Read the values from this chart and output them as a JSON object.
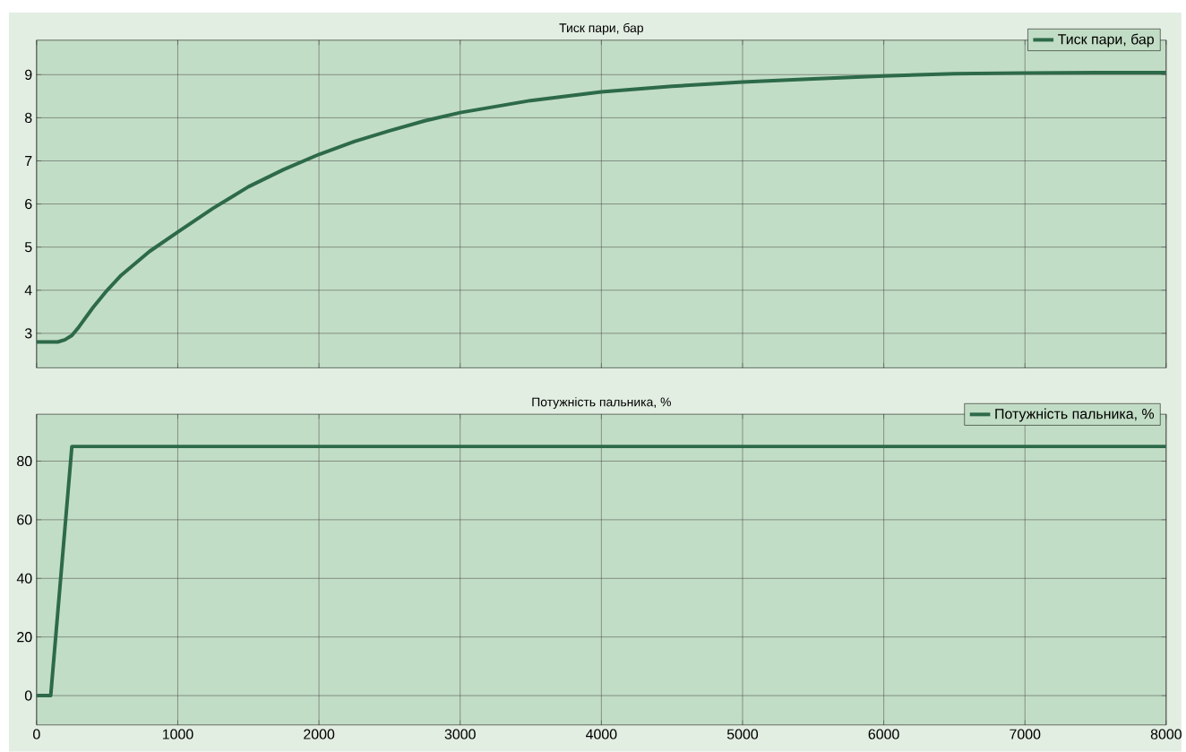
{
  "chart_data": [
    {
      "type": "line",
      "title": "Тиск пари, бар",
      "xlim": [
        0,
        8000
      ],
      "ylim": [
        2.2,
        9.8
      ],
      "xticks": [
        0,
        1000,
        2000,
        3000,
        4000,
        5000,
        6000,
        7000,
        8000
      ],
      "yticks": [
        3,
        4,
        5,
        6,
        7,
        8,
        9
      ],
      "grid": true,
      "legend": "top right",
      "tick_labels": "y",
      "line_style": "solid",
      "series": [
        {
          "name": "Тиск пари, бар",
          "color": "#2d6a4a",
          "x": [
            0,
            150,
            200,
            250,
            300,
            400,
            500,
            600,
            800,
            1000,
            1250,
            1500,
            1750,
            2000,
            2250,
            2500,
            2750,
            3000,
            3500,
            4000,
            4500,
            5000,
            5500,
            6000,
            6500,
            7000,
            7500,
            8000
          ],
          "values": [
            2.8,
            2.8,
            2.85,
            2.95,
            3.15,
            3.6,
            4.0,
            4.35,
            4.9,
            5.35,
            5.9,
            6.4,
            6.8,
            7.15,
            7.45,
            7.7,
            7.93,
            8.12,
            8.4,
            8.6,
            8.73,
            8.83,
            8.9,
            8.97,
            9.02,
            9.04,
            9.05,
            9.05
          ]
        }
      ]
    },
    {
      "type": "line",
      "title": "Потужність пальника, %",
      "xlim": [
        0,
        8000
      ],
      "ylim": [
        -10,
        96
      ],
      "xticks": [
        0,
        1000,
        2000,
        3000,
        4000,
        5000,
        6000,
        7000,
        8000
      ],
      "yticks": [
        0,
        20,
        40,
        60,
        80
      ],
      "grid": true,
      "legend": "top right",
      "line_style": "solid",
      "series": [
        {
          "name": "Потужність пальника, %",
          "color": "#2d6a4a",
          "x": [
            0,
            100,
            250,
            500,
            1000,
            2000,
            3000,
            4000,
            5000,
            6000,
            7000,
            8000
          ],
          "values": [
            0,
            0,
            85,
            85,
            85,
            85,
            85,
            85,
            85,
            85,
            85,
            85
          ]
        }
      ]
    }
  ]
}
